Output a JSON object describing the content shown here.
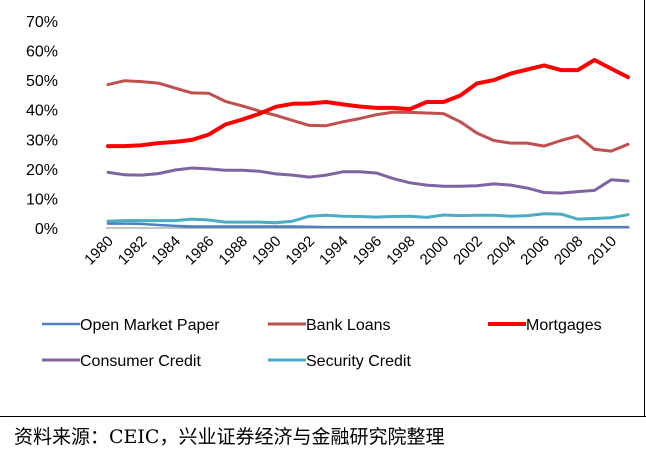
{
  "chart_data": {
    "type": "line",
    "title": "",
    "xlabel": "",
    "ylabel": "",
    "x": [
      1980,
      1981,
      1982,
      1983,
      1984,
      1985,
      1986,
      1987,
      1988,
      1989,
      1990,
      1991,
      1992,
      1993,
      1994,
      1995,
      1996,
      1997,
      1998,
      1999,
      2000,
      2001,
      2002,
      2003,
      2004,
      2005,
      2006,
      2007,
      2008,
      2009,
      2010,
      2011
    ],
    "x_tick_labels": [
      "1980",
      "1982",
      "1984",
      "1986",
      "1988",
      "1990",
      "1992",
      "1994",
      "1996",
      "1998",
      "2000",
      "2002",
      "2004",
      "2006",
      "2008",
      "2010"
    ],
    "y_tick_labels": [
      "0%",
      "10%",
      "20%",
      "30%",
      "40%",
      "50%",
      "60%",
      "70%"
    ],
    "ylim": [
      0,
      70
    ],
    "y_format": "percent",
    "legend_position": "bottom",
    "series": [
      {
        "name": "Open Market Paper",
        "color": "#4f81bd",
        "width": 2.5,
        "values": [
          1.5,
          1.5,
          1.4,
          1.0,
          0.7,
          0.5,
          0.5,
          0.5,
          0.5,
          0.5,
          0.5,
          0.5,
          0.4,
          0.3,
          0.3,
          0.3,
          0.3,
          0.3,
          0.3,
          0.3,
          0.3,
          0.3,
          0.3,
          0.3,
          0.3,
          0.3,
          0.3,
          0.3,
          0.3,
          0.3,
          0.3,
          0.3
        ]
      },
      {
        "name": "Bank Loans",
        "color": "#c0504d",
        "width": 3,
        "values": [
          48.5,
          49.8,
          49.5,
          49.0,
          47.3,
          45.7,
          45.6,
          42.8,
          41.3,
          39.6,
          38.1,
          36.4,
          34.7,
          34.6,
          35.9,
          37.0,
          38.3,
          39.2,
          39.1,
          38.9,
          38.7,
          35.9,
          32.1,
          29.6,
          28.7,
          28.7,
          27.7,
          29.6,
          31.1,
          26.6,
          26.0,
          28.3
        ]
      },
      {
        "name": "Mortgages",
        "color": "#ff0000",
        "width": 4,
        "values": [
          27.7,
          27.7,
          28.0,
          28.7,
          29.1,
          29.8,
          31.6,
          35.0,
          36.7,
          38.6,
          41.0,
          42.0,
          42.1,
          42.6,
          41.8,
          41.1,
          40.6,
          40.6,
          40.2,
          42.6,
          42.6,
          44.8,
          48.9,
          50.0,
          52.2,
          53.6,
          55.0,
          53.4,
          53.4,
          56.8,
          53.9,
          51.0
        ]
      },
      {
        "name": "Consumer Credit",
        "color": "#8064a2",
        "width": 3,
        "values": [
          18.8,
          18.0,
          17.9,
          18.4,
          19.6,
          20.3,
          20.0,
          19.5,
          19.5,
          19.2,
          18.3,
          17.9,
          17.2,
          17.9,
          19.0,
          19.0,
          18.6,
          16.7,
          15.3,
          14.5,
          14.1,
          14.1,
          14.3,
          14.9,
          14.5,
          13.5,
          12.0,
          11.8,
          12.3,
          12.7,
          16.3,
          15.9
        ]
      },
      {
        "name": "Security Credit",
        "color": "#4bacc6",
        "width": 3,
        "values": [
          2.3,
          2.5,
          2.5,
          2.5,
          2.5,
          3.0,
          2.7,
          2.0,
          2.0,
          2.0,
          1.8,
          2.3,
          4.0,
          4.3,
          4.0,
          3.9,
          3.7,
          3.9,
          4.0,
          3.6,
          4.4,
          4.2,
          4.3,
          4.3,
          4.0,
          4.2,
          4.8,
          4.7,
          3.0,
          3.2,
          3.5,
          4.5
        ]
      }
    ]
  },
  "footer": {
    "source_text": "资料来源：CEIC，兴业证券经济与金融研究院整理"
  }
}
